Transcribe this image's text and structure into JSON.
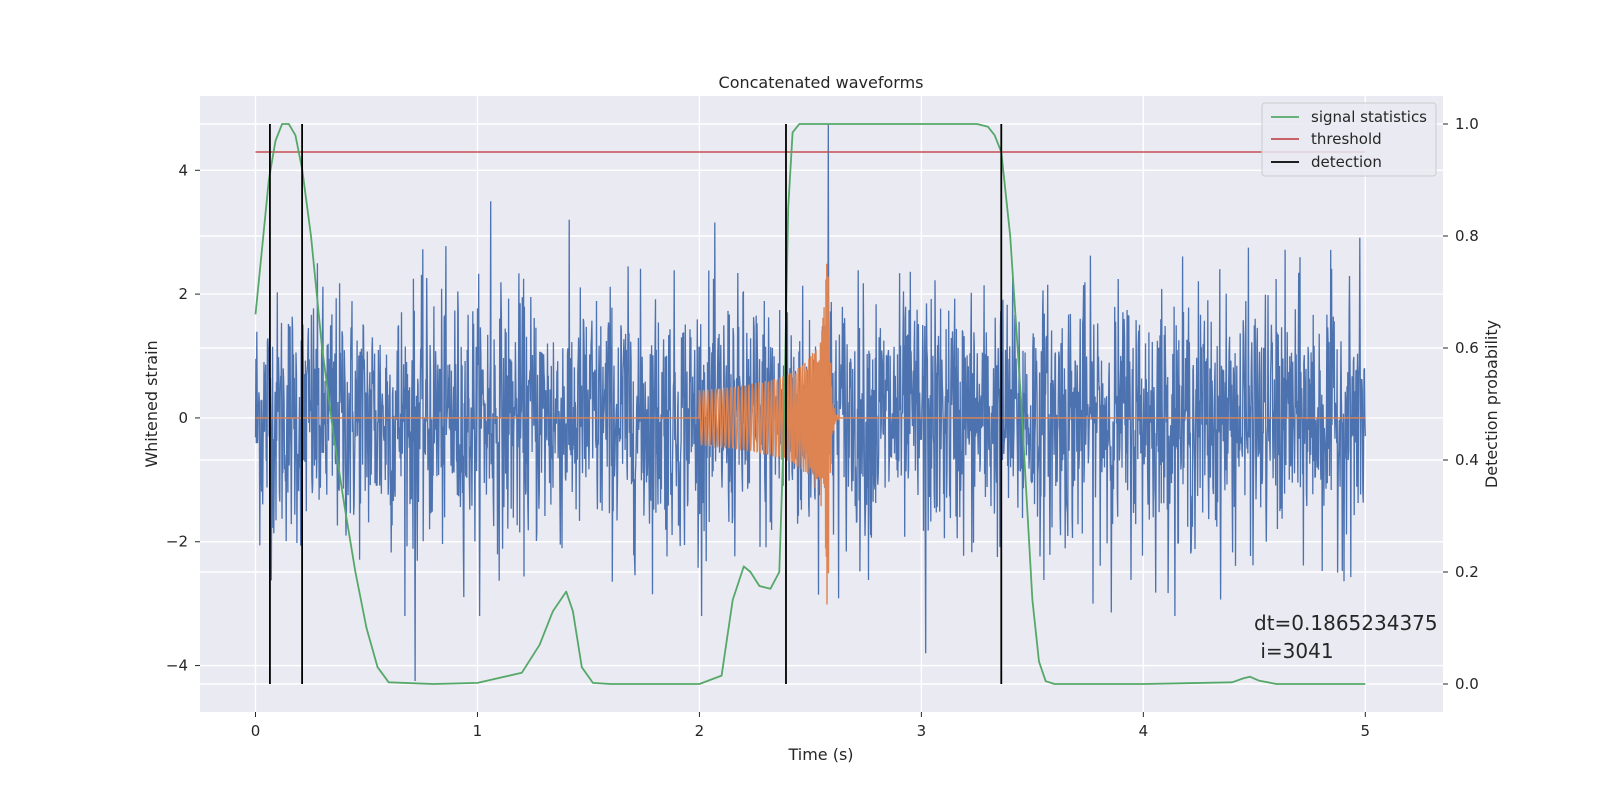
{
  "chart_data": {
    "type": "line",
    "title": "Concatenated waveforms",
    "xlabel": "Time (s)",
    "ylabel": "Whitened strain",
    "ylabel_right": "Detection probability",
    "xlim": [
      -0.25,
      5.35
    ],
    "ylim": [
      -4.75,
      5.2
    ],
    "ylim_right": [
      -0.05,
      1.05
    ],
    "xticks": [
      0,
      1,
      2,
      3,
      4,
      5
    ],
    "yticks": [
      -4,
      -2,
      0,
      2,
      4
    ],
    "yticks_right": [
      0.0,
      0.2,
      0.4,
      0.6,
      0.8,
      1.0
    ],
    "ytick_labels": [
      "−4",
      "−2",
      "0",
      "2",
      "4"
    ],
    "ytick_labels_right": [
      "0.0",
      "0.2",
      "0.4",
      "0.6",
      "0.8",
      "1.0"
    ],
    "grid": true,
    "legend_position": "top-right",
    "legend": [
      {
        "label": "signal statistics",
        "color": "#55a868"
      },
      {
        "label": "threshold",
        "color": "#c44e52"
      },
      {
        "label": "detection",
        "color": "#000000"
      }
    ],
    "strain_noise": {
      "color": "#4c72b0",
      "t_start": 0,
      "t_end": 5,
      "typical_amplitude": 1.0,
      "spikes": [
        {
          "x": 0.72,
          "y": -4.25
        },
        {
          "x": 1.06,
          "y": 3.5
        },
        {
          "x": 2.39,
          "y": 3.4
        },
        {
          "x": 2.58,
          "y": 4.75
        },
        {
          "x": 3.02,
          "y": -3.8
        }
      ]
    },
    "injected_signal": {
      "color": "#dd8452",
      "t_start": 2.0,
      "t_merger": 2.58,
      "peak_amplitude": 3.3,
      "start_amplitude": 0.45
    },
    "signal_statistics": {
      "color": "#55a868",
      "axis": "right",
      "x": [
        0.0,
        0.03,
        0.06,
        0.09,
        0.12,
        0.15,
        0.18,
        0.21,
        0.25,
        0.3,
        0.35,
        0.4,
        0.45,
        0.5,
        0.55,
        0.6,
        0.8,
        1.0,
        1.2,
        1.28,
        1.34,
        1.4,
        1.43,
        1.47,
        1.52,
        1.6,
        2.0,
        2.1,
        2.15,
        2.2,
        2.23,
        2.27,
        2.32,
        2.36,
        2.38,
        2.4,
        2.42,
        2.45,
        2.5,
        2.6,
        3.0,
        3.25,
        3.3,
        3.33,
        3.36,
        3.4,
        3.45,
        3.5,
        3.53,
        3.56,
        3.6,
        4.0,
        4.4,
        4.45,
        4.48,
        4.52,
        4.6,
        5.0
      ],
      "y": [
        0.66,
        0.78,
        0.9,
        0.97,
        1.0,
        1.0,
        0.98,
        0.92,
        0.8,
        0.6,
        0.45,
        0.32,
        0.2,
        0.1,
        0.03,
        0.003,
        0.0,
        0.002,
        0.02,
        0.07,
        0.13,
        0.165,
        0.13,
        0.03,
        0.002,
        0.0,
        0.0,
        0.015,
        0.15,
        0.21,
        0.2,
        0.175,
        0.17,
        0.2,
        0.45,
        0.85,
        0.985,
        1.0,
        1.0,
        1.0,
        1.0,
        1.0,
        0.995,
        0.98,
        0.95,
        0.8,
        0.5,
        0.15,
        0.04,
        0.005,
        0.0,
        0.0,
        0.003,
        0.01,
        0.013,
        0.006,
        0.0,
        0.0
      ]
    },
    "threshold": {
      "color": "#c44e52",
      "y": 0.95,
      "axis": "right",
      "x_range": [
        0,
        5
      ]
    },
    "detections": {
      "color": "#000000",
      "x": [
        0.065,
        0.21,
        2.39,
        3.36
      ]
    },
    "annotations": [
      "dt=0.1865234375",
      " i=3041"
    ]
  }
}
